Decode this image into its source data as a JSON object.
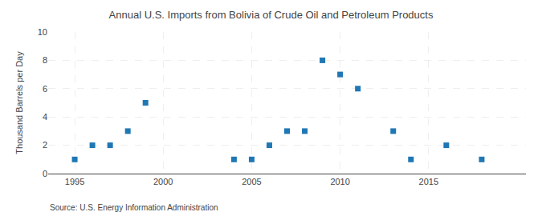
{
  "chart_data": {
    "type": "scatter",
    "title": "Annual U.S. Imports from Bolivia of Crude Oil and Petroleum Products",
    "ylabel": "Thousand Barrels per Day",
    "annotations": [
      "Source: U.S. Energy Information Administration"
    ],
    "x": [
      1995,
      1996,
      1997,
      1998,
      1999,
      2004,
      2005,
      2006,
      2007,
      2008,
      2009,
      2010,
      2011,
      2013,
      2014,
      2016,
      2018
    ],
    "values": [
      1,
      2,
      2,
      3,
      5,
      1,
      1,
      2,
      3,
      3,
      8,
      7,
      6,
      3,
      1,
      2,
      1
    ],
    "marker": "square",
    "xlim": [
      1993.5,
      2020.5
    ],
    "xticks": [
      1995,
      2000,
      2005,
      2010,
      2015
    ],
    "ylim": [
      0,
      10
    ],
    "yticks": [
      0,
      2,
      4,
      6,
      8,
      10
    ],
    "grid": true
  }
}
